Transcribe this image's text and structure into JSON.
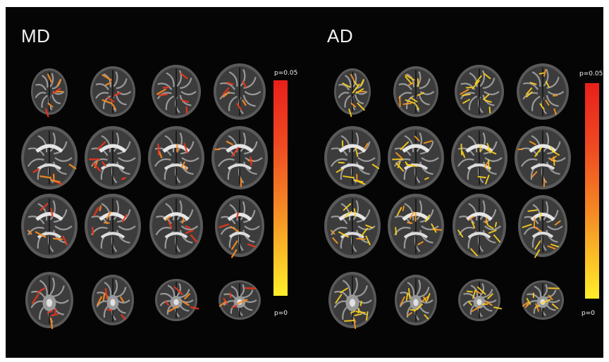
{
  "figure": {
    "panels": [
      {
        "id": "md",
        "title": "MD",
        "colorbar": {
          "top_label": "p=0.05",
          "bottom_label": "p=0",
          "colors": [
            "#e8201a",
            "#f58a24",
            "#ffee2a"
          ]
        }
      },
      {
        "id": "ad",
        "title": "AD",
        "colorbar": {
          "top_label": "p=0.05",
          "bottom_label": "p=0",
          "colors": [
            "#e8201a",
            "#f58a24",
            "#ffee2a"
          ]
        }
      }
    ]
  }
}
